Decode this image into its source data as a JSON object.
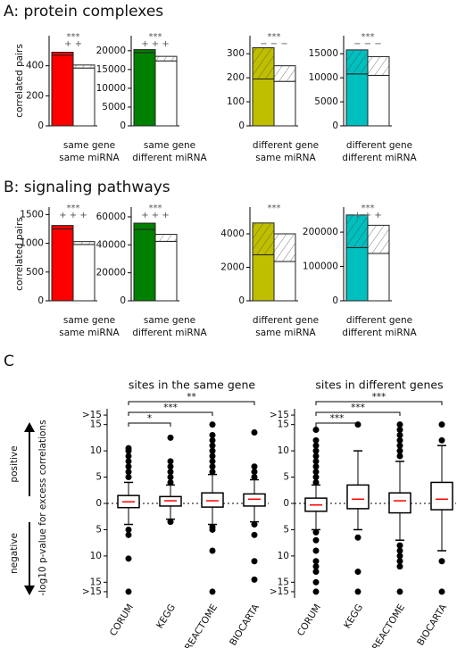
{
  "panel_titles": [
    "A: protein complexes",
    "B: signaling pathways",
    "C"
  ],
  "chart_data": [
    {
      "type": "bar",
      "xlabel": [
        "same gene",
        "same miRNA"
      ],
      "ylabel": "correlated pairs",
      "ylim": [
        0,
        600
      ],
      "yticks": [
        0,
        200,
        400
      ],
      "hatch_top": true,
      "annotations": [
        "***",
        "+ +"
      ],
      "bars": [
        {
          "color": "#ff0000",
          "values": [
            470,
            20
          ]
        },
        {
          "color": "#ffffff",
          "values": [
            385,
            20
          ]
        }
      ]
    },
    {
      "type": "bar",
      "xlabel": [
        "same gene",
        "different miRNA"
      ],
      "ylim": [
        0,
        24000
      ],
      "yticks": [
        0,
        5000,
        10000,
        15000,
        20000
      ],
      "hatch_top": true,
      "annotations": [
        "***",
        "+ + +"
      ],
      "bars": [
        {
          "color": "#008000",
          "values": [
            19500,
            800
          ]
        },
        {
          "color": "#ffffff",
          "values": [
            17300,
            1200
          ]
        }
      ]
    },
    {
      "type": "bar",
      "xlabel": [
        "different gene",
        "same miRNA"
      ],
      "ylim": [
        0,
        375
      ],
      "yticks": [
        0,
        100,
        200,
        300
      ],
      "hatch_top": true,
      "annotations": [
        "***",
        "− − −"
      ],
      "bars": [
        {
          "color": "#bfbf00",
          "values": [
            195,
            130
          ]
        },
        {
          "color": "#ffffff",
          "values": [
            185,
            65
          ]
        }
      ]
    },
    {
      "type": "bar",
      "xlabel": [
        "different gene",
        "different miRNA"
      ],
      "ylim": [
        0,
        18750
      ],
      "yticks": [
        0,
        5000,
        10000,
        15000
      ],
      "hatch_top": true,
      "annotations": [
        "***",
        "− − −"
      ],
      "bars": [
        {
          "color": "#00bfbf",
          "values": [
            10800,
            5000
          ]
        },
        {
          "color": "#ffffff",
          "values": [
            10500,
            3900
          ]
        }
      ]
    },
    {
      "type": "bar",
      "xlabel": [
        "same gene",
        "same miRNA"
      ],
      "ylabel": "correlated pairs",
      "ylim": [
        0,
        1630
      ],
      "yticks": [
        0,
        500,
        1000,
        1500
      ],
      "hatch_top": true,
      "annotations": [
        "***",
        "+ + +"
      ],
      "bars": [
        {
          "color": "#ff0000",
          "values": [
            1250,
            60
          ]
        },
        {
          "color": "#ffffff",
          "values": [
            980,
            50
          ]
        }
      ]
    },
    {
      "type": "bar",
      "xlabel": [
        "same gene",
        "different miRNA"
      ],
      "ylim": [
        0,
        67000
      ],
      "yticks": [
        0,
        20000,
        40000,
        60000
      ],
      "hatch_top": true,
      "annotations": [
        "***",
        "+ + +"
      ],
      "bars": [
        {
          "color": "#008000",
          "values": [
            51000,
            4500
          ]
        },
        {
          "color": "#ffffff",
          "values": [
            42500,
            5000
          ]
        }
      ]
    },
    {
      "type": "bar",
      "xlabel": [
        "different gene",
        "same miRNA"
      ],
      "ylim": [
        0,
        5600
      ],
      "yticks": [
        0,
        2000,
        4000
      ],
      "hatch_top": true,
      "annotations": [
        "***"
      ],
      "bars": [
        {
          "color": "#bfbf00",
          "values": [
            2750,
            1900
          ]
        },
        {
          "color": "#ffffff",
          "values": [
            2350,
            1650
          ]
        }
      ]
    },
    {
      "type": "bar",
      "xlabel": [
        "different gene",
        "different miRNA"
      ],
      "ylim": [
        0,
        273000
      ],
      "yticks": [
        0,
        100000,
        200000
      ],
      "hatch_top": true,
      "annotations": [
        "***",
        "+ + +"
      ],
      "bars": [
        {
          "color": "#00bfbf",
          "values": [
            155000,
            95000
          ]
        },
        {
          "color": "#ffffff",
          "values": [
            138000,
            82000
          ]
        }
      ]
    },
    {
      "type": "box",
      "title": "sites in the same gene",
      "ylabel": "-log10 p-value for excess correlations",
      "direction_labels": [
        "positive",
        "negative"
      ],
      "categories": [
        "CORUM",
        "KEGG",
        "REACTOME",
        "BIOCARTA"
      ],
      "ylim": [
        -18,
        18
      ],
      "yticks": [
        {
          "value": 16.8,
          "label": ">15"
        },
        15,
        10,
        5,
        0,
        {
          "value": -5,
          "label": "5"
        },
        {
          "value": -10,
          "label": "10"
        },
        {
          "value": -15,
          "label": "15"
        },
        {
          "value": -16.8,
          "label": ">15"
        }
      ],
      "zero_line": true,
      "box_color": "#ffffff",
      "median_color": "#ff0000",
      "significance_vs_first": [
        "*",
        "***",
        "**"
      ],
      "boxes": [
        {
          "whislo": -4,
          "q1": -0.8,
          "med": 0.3,
          "q3": 1.5,
          "whishi": 4,
          "fliers": [
            5,
            6,
            7,
            8,
            9,
            10,
            10.5,
            -5,
            -6,
            -10.5,
            -16.8
          ]
        },
        {
          "whislo": -3,
          "q1": -0.5,
          "med": 0.5,
          "q3": 1.3,
          "whishi": 3.5,
          "fliers": [
            4,
            5,
            6,
            7,
            8,
            12.5,
            -3.5
          ]
        },
        {
          "whislo": -4,
          "q1": -0.7,
          "med": 0.5,
          "q3": 2,
          "whishi": 5.5,
          "fliers": [
            6,
            7,
            8,
            9,
            10,
            11,
            12,
            13,
            15,
            -4.5,
            -5,
            -9,
            -16.8
          ]
        },
        {
          "whislo": -3.5,
          "q1": -0.5,
          "med": 0.8,
          "q3": 1.8,
          "whishi": 4.5,
          "fliers": [
            5,
            6,
            7,
            13.5,
            -4,
            -6,
            -11,
            -14.5
          ]
        }
      ]
    },
    {
      "type": "box",
      "title": "sites in different genes",
      "categories": [
        "CORUM",
        "KEGG",
        "REACTOME",
        "BIOCARTA"
      ],
      "ylim": [
        -18,
        18
      ],
      "yticks": [
        {
          "value": 16.8,
          "label": ">15"
        },
        15,
        10,
        5,
        0,
        {
          "value": -5,
          "label": "5"
        },
        {
          "value": -10,
          "label": "10"
        },
        {
          "value": -15,
          "label": "15"
        },
        {
          "value": -16.8,
          "label": ">15"
        }
      ],
      "zero_line": true,
      "box_color": "#ffffff",
      "median_color": "#ff0000",
      "significance_vs_first": [
        "***",
        "***",
        "***"
      ],
      "boxes": [
        {
          "whislo": -5,
          "q1": -1.5,
          "med": -0.3,
          "q3": 1,
          "whishi": 3.5,
          "fliers": [
            4,
            5,
            6,
            7,
            8,
            9,
            10,
            11,
            12,
            14,
            -5.5,
            -7,
            -9,
            -11,
            -12,
            -13,
            -15,
            -16.8
          ]
        },
        {
          "whislo": -5,
          "q1": -1,
          "med": 0.8,
          "q3": 3.5,
          "whishi": 10,
          "fliers": [
            15,
            -6.5,
            -13,
            -16.8
          ]
        },
        {
          "whislo": -7,
          "q1": -1.8,
          "med": 0.5,
          "q3": 2,
          "whishi": 8,
          "fliers": [
            9,
            10,
            11,
            12,
            13,
            14,
            15,
            -8,
            -9,
            -10,
            -11,
            -12,
            -16.8
          ]
        },
        {
          "whislo": -9,
          "q1": -1.2,
          "med": 0.8,
          "q3": 4,
          "whishi": 11,
          "fliers": [
            12,
            15,
            -11,
            -16.8
          ]
        }
      ]
    }
  ]
}
